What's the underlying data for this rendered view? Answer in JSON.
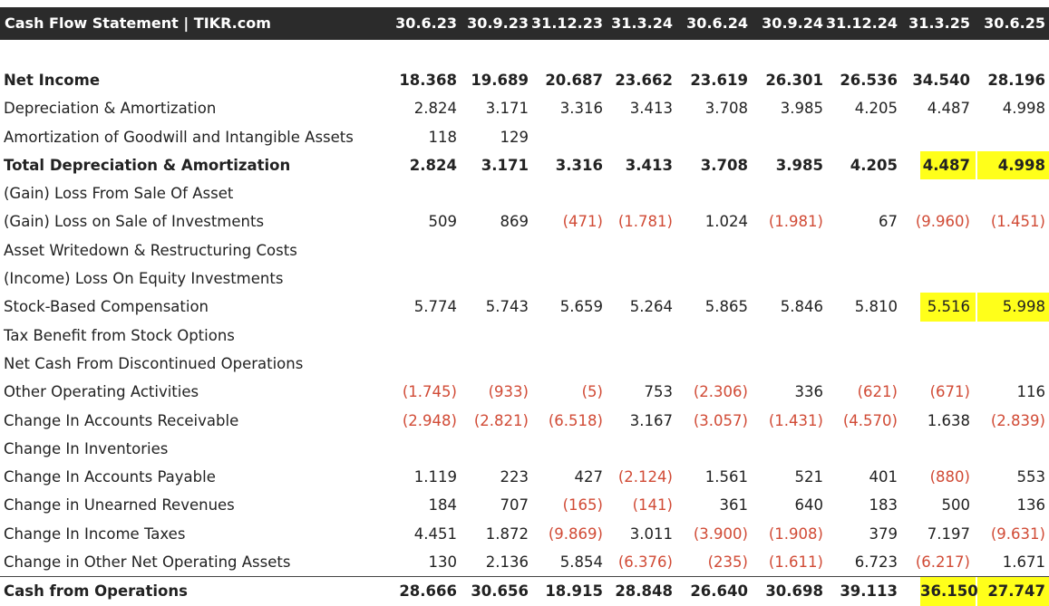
{
  "header": {
    "title": "Cash Flow Statement | TIKR.com",
    "periods": [
      "30.6.23",
      "30.9.23",
      "31.12.23",
      "31.3.24",
      "30.6.24",
      "30.9.24",
      "31.12.24",
      "31.3.25",
      "30.6.25"
    ]
  },
  "colors": {
    "header_bg": "#2b2b2b",
    "negative": "#d14b36",
    "highlight": "#ffff1a"
  },
  "rows": [
    {
      "label": "Net Income",
      "bold": true,
      "values": [
        "18.368",
        "19.689",
        "20.687",
        "23.662",
        "23.619",
        "26.301",
        "26.536",
        "34.540",
        "28.196"
      ]
    },
    {
      "label": "Depreciation & Amortization",
      "values": [
        "2.824",
        "3.171",
        "3.316",
        "3.413",
        "3.708",
        "3.985",
        "4.205",
        "4.487",
        "4.998"
      ]
    },
    {
      "label": "Amortization of Goodwill and Intangible Assets",
      "values": [
        "118",
        "129",
        "",
        "",
        "",
        "",
        "",
        "",
        ""
      ]
    },
    {
      "label": "Total Depreciation & Amortization",
      "bold": true,
      "highlight": [
        7,
        8
      ],
      "values": [
        "2.824",
        "3.171",
        "3.316",
        "3.413",
        "3.708",
        "3.985",
        "4.205",
        "4.487",
        "4.998"
      ]
    },
    {
      "label": "(Gain) Loss From Sale Of Asset",
      "values": [
        "",
        "",
        "",
        "",
        "",
        "",
        "",
        "",
        ""
      ]
    },
    {
      "label": "(Gain) Loss on Sale of Investments",
      "values": [
        "509",
        "869",
        "(471)",
        "(1.781)",
        "1.024",
        "(1.981)",
        "67",
        "(9.960)",
        "(1.451)"
      ]
    },
    {
      "label": "Asset Writedown & Restructuring Costs",
      "values": [
        "",
        "",
        "",
        "",
        "",
        "",
        "",
        "",
        ""
      ]
    },
    {
      "label": "(Income) Loss On Equity Investments",
      "values": [
        "",
        "",
        "",
        "",
        "",
        "",
        "",
        "",
        ""
      ]
    },
    {
      "label": "Stock-Based Compensation",
      "highlight": [
        7,
        8
      ],
      "values": [
        "5.774",
        "5.743",
        "5.659",
        "5.264",
        "5.865",
        "5.846",
        "5.810",
        "5.516",
        "5.998"
      ]
    },
    {
      "label": "Tax Benefit from Stock Options",
      "values": [
        "",
        "",
        "",
        "",
        "",
        "",
        "",
        "",
        ""
      ]
    },
    {
      "label": "Net Cash From Discontinued Operations",
      "values": [
        "",
        "",
        "",
        "",
        "",
        "",
        "",
        "",
        ""
      ]
    },
    {
      "label": "Other Operating Activities",
      "values": [
        "(1.745)",
        "(933)",
        "(5)",
        "753",
        "(2.306)",
        "336",
        "(621)",
        "(671)",
        "116"
      ]
    },
    {
      "label": "Change In Accounts Receivable",
      "values": [
        "(2.948)",
        "(2.821)",
        "(6.518)",
        "3.167",
        "(3.057)",
        "(1.431)",
        "(4.570)",
        "1.638",
        "(2.839)"
      ]
    },
    {
      "label": "Change In Inventories",
      "values": [
        "",
        "",
        "",
        "",
        "",
        "",
        "",
        "",
        ""
      ]
    },
    {
      "label": "Change In Accounts Payable",
      "values": [
        "1.119",
        "223",
        "427",
        "(2.124)",
        "1.561",
        "521",
        "401",
        "(880)",
        "553"
      ]
    },
    {
      "label": "Change in Unearned Revenues",
      "values": [
        "184",
        "707",
        "(165)",
        "(141)",
        "361",
        "640",
        "183",
        "500",
        "136"
      ]
    },
    {
      "label": "Change In Income Taxes",
      "values": [
        "4.451",
        "1.872",
        "(9.869)",
        "3.011",
        "(3.900)",
        "(1.908)",
        "379",
        "7.197",
        "(9.631)"
      ]
    },
    {
      "label": "Change in Other Net Operating Assets",
      "values": [
        "130",
        "2.136",
        "5.854",
        "(6.376)",
        "(235)",
        "(1.611)",
        "6.723",
        "(6.217)",
        "1.671"
      ]
    },
    {
      "label": "Cash from Operations",
      "bold": true,
      "total": true,
      "highlight": [
        7,
        8
      ],
      "values": [
        "28.666",
        "30.656",
        "18.915",
        "28.848",
        "26.640",
        "30.698",
        "39.113",
        "36.150",
        "27.747"
      ]
    }
  ]
}
